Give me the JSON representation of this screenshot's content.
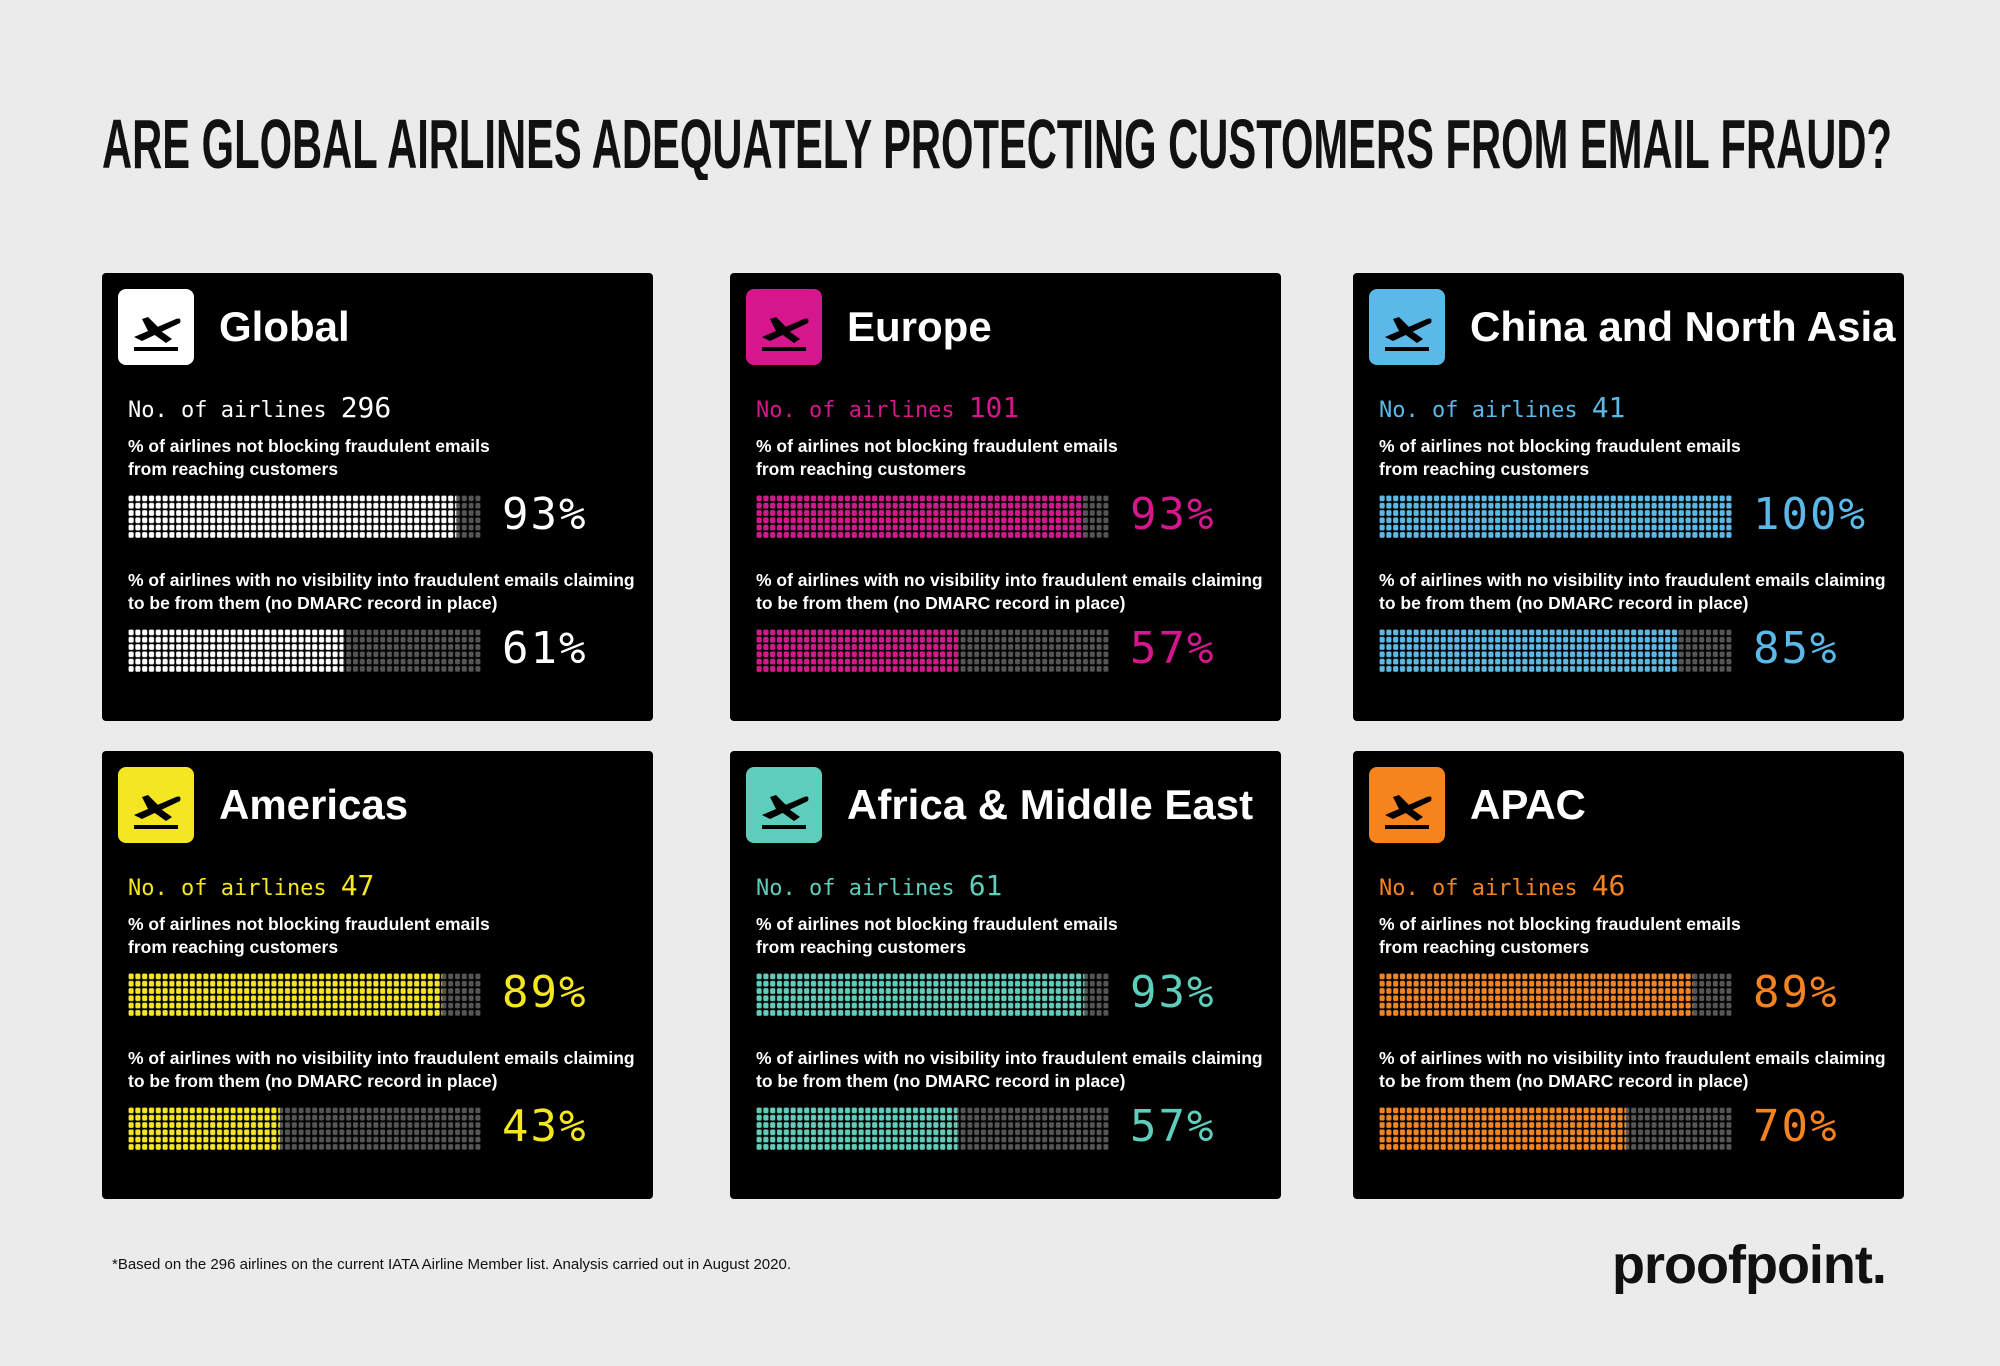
{
  "title": "ARE GLOBAL AIRLINES ADEQUATELY PROTECTING CUSTOMERS FROM EMAIL FRAUD?",
  "airlines_label": "No. of airlines",
  "metric_labels": [
    "% of airlines not blocking fraudulent emails from reaching customers",
    "% of airlines with no visibility into fraudulent emails claiming to be from them (no DMARC record in place)"
  ],
  "panels": [
    {
      "name": "Global",
      "color": "#ffffff",
      "airlines": 296,
      "metrics": [
        {
          "value": 93,
          "value_label": "93%"
        },
        {
          "value": 61,
          "value_label": "61%"
        }
      ]
    },
    {
      "name": "Europe",
      "color": "#d6168c",
      "airlines": 101,
      "metrics": [
        {
          "value": 93,
          "value_label": "93%"
        },
        {
          "value": 57,
          "value_label": "57%"
        }
      ]
    },
    {
      "name": "China and North Asia",
      "color": "#5bb9e8",
      "airlines": 41,
      "metrics": [
        {
          "value": 100,
          "value_label": "100%"
        },
        {
          "value": 85,
          "value_label": "85%"
        }
      ]
    },
    {
      "name": "Americas",
      "color": "#f4e620",
      "airlines": 47,
      "metrics": [
        {
          "value": 89,
          "value_label": "89%"
        },
        {
          "value": 43,
          "value_label": "43%"
        }
      ]
    },
    {
      "name": "Africa & Middle East",
      "color": "#5fcdbb",
      "airlines": 61,
      "metrics": [
        {
          "value": 93,
          "value_label": "93%"
        },
        {
          "value": 57,
          "value_label": "57%"
        }
      ]
    },
    {
      "name": "APAC",
      "color": "#f5841f",
      "airlines": 46,
      "metrics": [
        {
          "value": 89,
          "value_label": "89%"
        },
        {
          "value": 70,
          "value_label": "70%"
        }
      ]
    }
  ],
  "footnote": "*Based on the 296 airlines on the current IATA Airline Member list. Analysis carried out in August 2020.",
  "logo": "proofpoint."
}
